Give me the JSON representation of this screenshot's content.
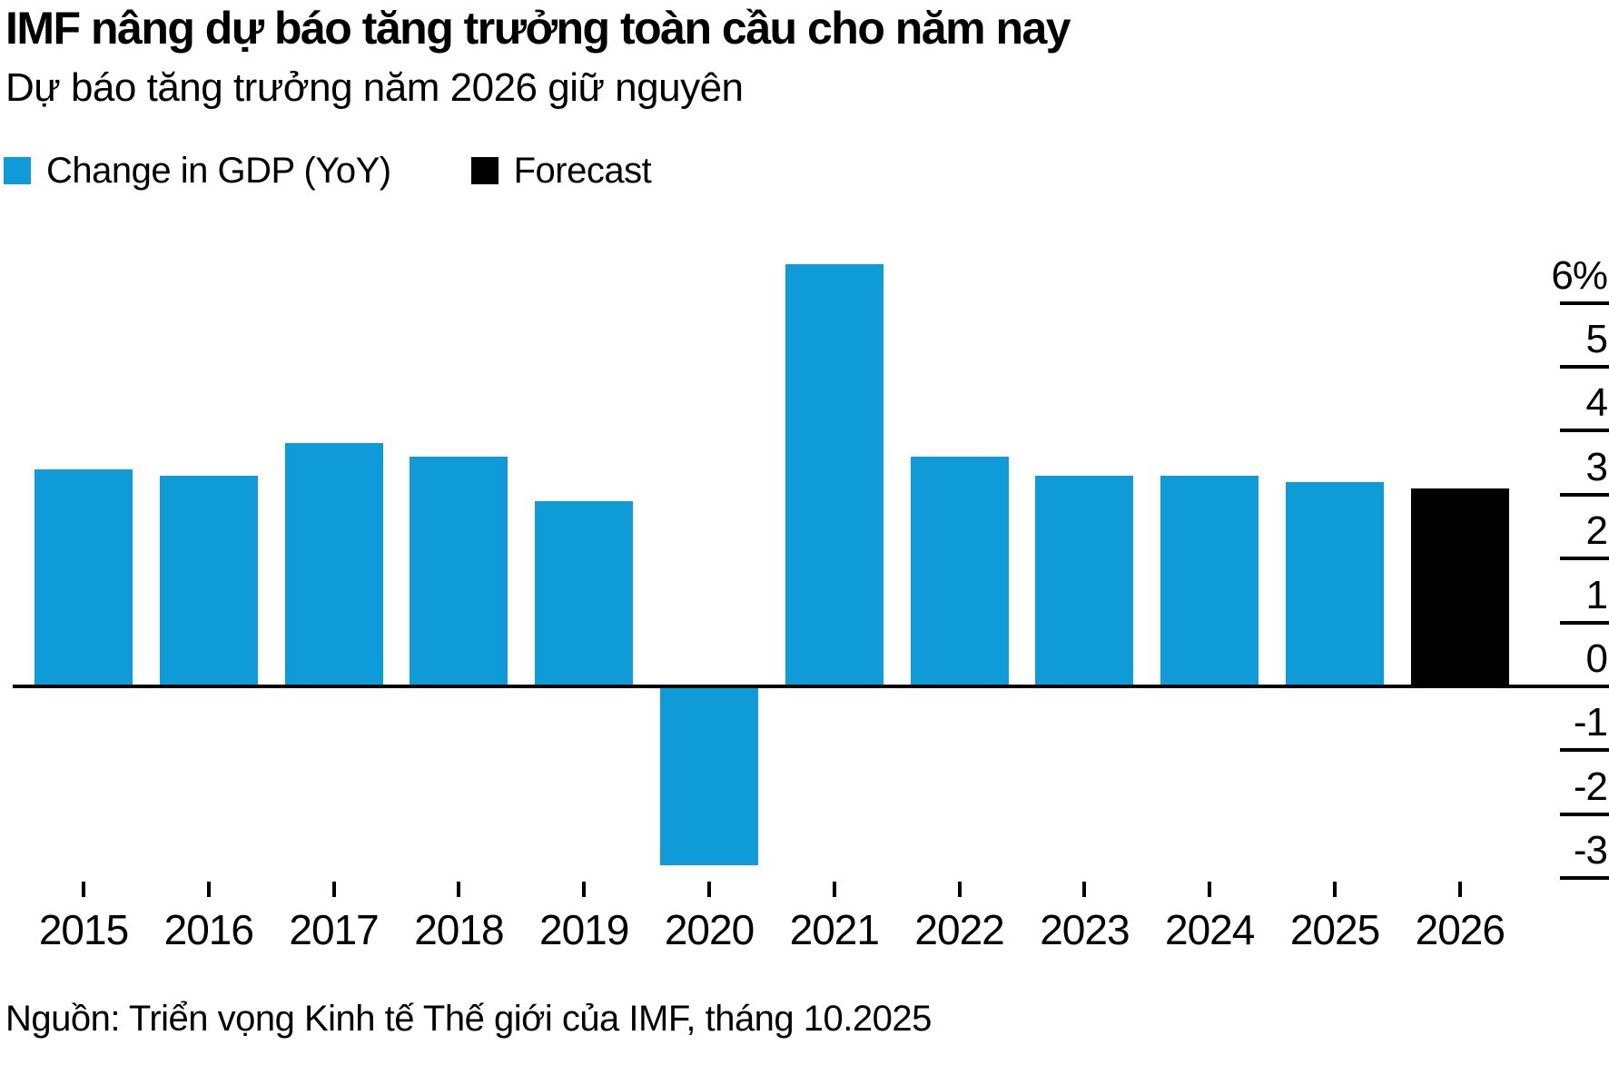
{
  "header": {
    "title": "IMF nâng dự báo tăng trưởng toàn cầu cho năm nay",
    "subtitle": "Dự báo tăng trưởng năm 2026 giữ nguyên"
  },
  "legend": {
    "items": [
      {
        "label": "Change in GDP (YoY)",
        "color": "#0f9bd7"
      },
      {
        "label": "Forecast",
        "color": "#000000"
      }
    ]
  },
  "chart_data": {
    "type": "bar",
    "title": "IMF nâng dự báo tăng trưởng toàn cầu cho năm nay",
    "subtitle": "Dự báo tăng trưởng năm 2026 giữ nguyên",
    "unit": "%",
    "categories": [
      "2015",
      "2016",
      "2017",
      "2018",
      "2019",
      "2020",
      "2021",
      "2022",
      "2023",
      "2024",
      "2025",
      "2026"
    ],
    "series": [
      {
        "name": "Change in GDP (YoY)",
        "color": "#0f9bd7",
        "categories": [
          "2015",
          "2016",
          "2017",
          "2018",
          "2019",
          "2020",
          "2021",
          "2022",
          "2023",
          "2024",
          "2025"
        ],
        "values": [
          3.4,
          3.3,
          3.8,
          3.6,
          2.9,
          -2.8,
          6.6,
          3.6,
          3.3,
          3.3,
          3.2
        ]
      },
      {
        "name": "Forecast",
        "color": "#000000",
        "categories": [
          "2026"
        ],
        "values": [
          3.1
        ]
      }
    ],
    "y_ticks": [
      "6%",
      "5",
      "4",
      "3",
      "2",
      "1",
      "0",
      "-1",
      "-2",
      "-3"
    ],
    "y_tick_values": [
      6,
      5,
      4,
      3,
      2,
      1,
      0,
      -1,
      -2,
      -3
    ],
    "ylim": [
      -3.5,
      6.9
    ],
    "xlabel": "",
    "ylabel": "",
    "grid": "right-tick-segments-only",
    "legend_position": "top-left",
    "axis_side": "right"
  },
  "source": {
    "text": "Nguồn: Triển vọng Kinh tế Thế giới của IMF, tháng 10.2025"
  }
}
